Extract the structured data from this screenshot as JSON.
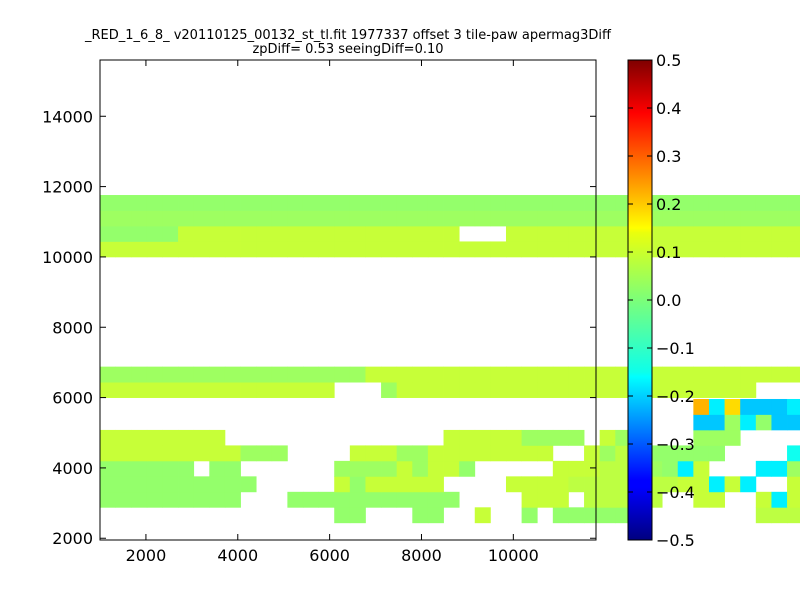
{
  "chart_data": {
    "type": "heatmap",
    "title": "_RED_1_6_8_ v20110125_00132_st_tl.fit 1977337 offset 3 tile-paw apermag3Diff",
    "subtitle": "zpDiff= 0.53 seeingDiff=0.10",
    "xlabel": "",
    "ylabel": "",
    "xlim": [
      1000,
      11800
    ],
    "ylim": [
      1950,
      15600
    ],
    "xticks": [
      "2000",
      "4000",
      "6000",
      "8000",
      "10000"
    ],
    "yticks": [
      "2000",
      "4000",
      "6000",
      "8000",
      "10000",
      "12000",
      "14000"
    ],
    "colorbar": {
      "range": [
        -0.5,
        0.5
      ],
      "ticks": [
        "0.5",
        "0.4",
        "0.3",
        "0.2",
        "0.1",
        "0.0",
        "−0.1",
        "−0.2",
        "−0.3",
        "−0.4",
        "−0.5"
      ],
      "colormap": "jet"
    },
    "grid": false,
    "cell_width": 340,
    "cell_height": 440,
    "x_start": 1000,
    "y_start": 2000,
    "bands": [
      {
        "label": "y 2000-4000",
        "rows": [
          "....................................................",
          "...............dd...dd..b..d.dddddb.......fffb..ddd.",
          "ddddddddd...ddddddddddd....bbb.fffff..bb..bgbbb..bcb",
          "dddddddddd.....bdbbbbb....bbbbfffffffbbgbg..bgcbbbgg",
          "dddddd.dd......ccccbcbbd.....bbbfffcdgb...ggcbbggbbg",
          "bbbbbbbbbccc....bbbccbbbbbbbb..bcffddddd....eccbc.eb",
          "bbbbbbbb..............bbbbbcccc.bcd...ccc.....bbbb.b",
          "......................................hhcgdhhhaaaaaa",
          "......................................igjhhhgkkahhhi"
        ]
      },
      {
        "label": "y 6000-7800",
        "rows": [
          "bbbbbbbbbbbbbbb...cbbbbbbbbbbbbbbbbbbbbbbb...bbbbbbb",
          "cccccccccccccccccbbbbbbbbbbbbbbbbbbbbbbbbbbbbbbbbbbb"
        ]
      },
      {
        "label": "y 10000-11800",
        "rows": [
          "bbbbbbbbbbbbbbbbbbbbbbbbbbbbbbbbbbbbbbbbbbbbbbbbbbbb",
          "dddddbbbbbbbbbbbbbbbbbb...bbbbbbbbbbbbbbbbbbbbbbbbbb",
          "cccccccccccccccccccccccccccccccccccccccccccccccccccc",
          "dddddddddddddddddddddddddddddddddddddddddddddddddddd"
        ]
      }
    ]
  }
}
